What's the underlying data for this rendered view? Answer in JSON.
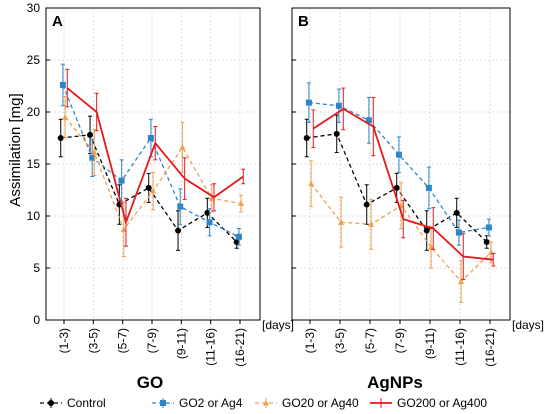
{
  "figure": {
    "ylabel": "Assimilation [mg]",
    "xunit": "[days]",
    "bottom_labels": [
      "GO",
      "AgNPs"
    ],
    "legend": [
      "Control",
      "GO2 or Ag4",
      "GO20 or Ag40",
      "GO200 or Ag400"
    ]
  },
  "chart_data": [
    {
      "type": "line",
      "panel": "A",
      "ylabel": "Assimilation [mg]",
      "xlabel": "[days]",
      "ylim": [
        0,
        30
      ],
      "yticks": [
        0,
        5,
        10,
        15,
        20,
        25,
        30
      ],
      "categories": [
        "(1-3)",
        "(3-5)",
        "(5-7)",
        "(7-9)",
        "(9-11)",
        "(11-16)",
        "(16-21)"
      ],
      "grid": true,
      "series": [
        {
          "name": "Control",
          "color": "#000000",
          "dash": "dashed",
          "marker": "circle",
          "values": [
            17.5,
            17.8,
            11.1,
            12.7,
            8.6,
            10.3,
            7.5
          ],
          "errors": [
            1.8,
            1.8,
            1.9,
            1.4,
            1.9,
            1.4,
            0.6
          ]
        },
        {
          "name": "GO2 or Ag4",
          "color": "#2e86c8",
          "dash": "dashed",
          "marker": "square",
          "values": [
            22.6,
            15.6,
            13.4,
            17.5,
            10.9,
            9.4,
            8.0
          ],
          "errors": [
            2.0,
            1.8,
            2.0,
            1.8,
            1.7,
            1.3,
            0.8
          ]
        },
        {
          "name": "GO20 or Ag40",
          "color": "#f0a050",
          "dash": "dashed",
          "marker": "triangle",
          "values": [
            19.5,
            16.1,
            8.7,
            12.4,
            16.6,
            11.7,
            11.2
          ],
          "errors": [
            2.0,
            2.2,
            2.6,
            1.8,
            2.4,
            1.3,
            0.8
          ]
        },
        {
          "name": "GO200 or Ag400",
          "color": "#e41a1c",
          "dash": "solid",
          "marker": "none",
          "values": [
            22.3,
            20.0,
            9.4,
            17.0,
            13.6,
            11.8,
            13.8
          ],
          "errors": [
            1.8,
            1.8,
            2.3,
            1.6,
            2.0,
            1.3,
            0.7
          ]
        }
      ]
    },
    {
      "type": "line",
      "panel": "B",
      "xlabel": "[days]",
      "ylim": [
        0,
        30
      ],
      "yticks": [
        0,
        5,
        10,
        15,
        20,
        25,
        30
      ],
      "categories": [
        "(1-3)",
        "(3-5)",
        "(5-7)",
        "(7-9)",
        "(9-11)",
        "(11-16)",
        "(16-21)"
      ],
      "grid": true,
      "series": [
        {
          "name": "Control",
          "color": "#000000",
          "dash": "dashed",
          "marker": "circle",
          "values": [
            17.5,
            17.9,
            11.1,
            12.7,
            8.6,
            10.3,
            7.5
          ],
          "errors": [
            1.8,
            1.8,
            1.9,
            1.4,
            1.9,
            1.4,
            0.6
          ]
        },
        {
          "name": "GO2 or Ag4",
          "color": "#2e86c8",
          "dash": "dashed",
          "marker": "square",
          "values": [
            20.9,
            20.6,
            19.2,
            15.9,
            12.7,
            8.4,
            8.9
          ],
          "errors": [
            1.9,
            1.6,
            2.2,
            1.7,
            2.0,
            1.2,
            0.8
          ]
        },
        {
          "name": "GO20 or Ag40",
          "color": "#f0a050",
          "dash": "dashed",
          "marker": "triangle",
          "values": [
            13.1,
            9.4,
            9.2,
            11.0,
            7.0,
            3.7,
            6.5
          ],
          "errors": [
            2.2,
            2.4,
            2.4,
            2.2,
            2.0,
            2.0,
            1.0
          ]
        },
        {
          "name": "GO200 or Ag400",
          "color": "#e41a1c",
          "dash": "solid",
          "marker": "none",
          "values": [
            18.4,
            20.3,
            18.6,
            9.7,
            8.8,
            6.1,
            5.8
          ],
          "errors": [
            1.8,
            2.0,
            2.8,
            1.8,
            2.0,
            2.2,
            0.6
          ]
        }
      ]
    }
  ]
}
